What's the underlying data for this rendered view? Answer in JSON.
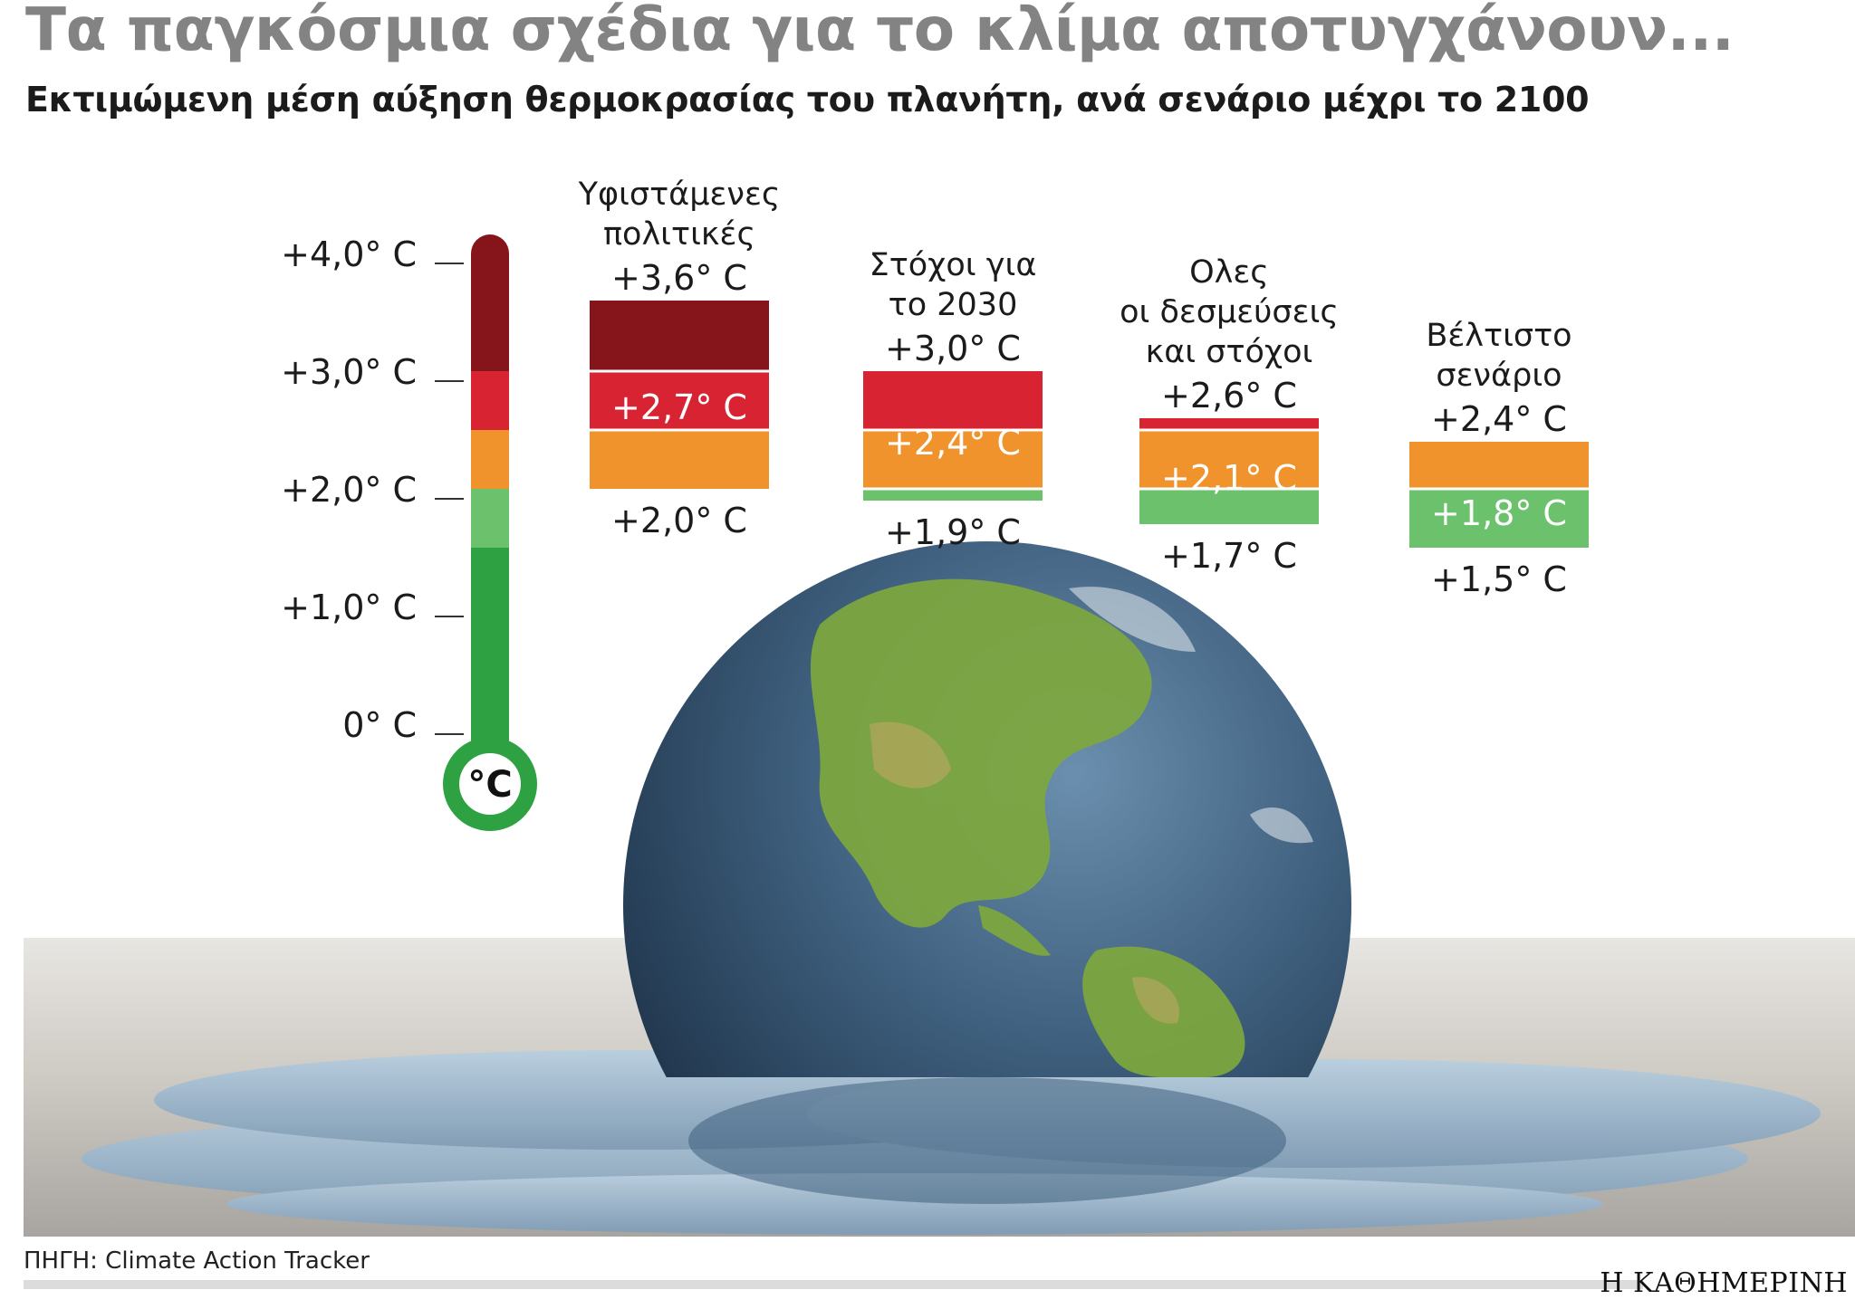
{
  "header": {
    "title": "Τα παγκόσμια σχέδια για το κλίμα αποτυγχάνουν...",
    "subtitle": "Εκτιμώμενη μέση αύξηση θερμοκρασίας του πλανήτη, ανά σενάριο μέχρι το 2100"
  },
  "footer": {
    "source": "ΠΗΓΗ: Climate Action Tracker",
    "brand": "Η ΚΑΘΗΜΕΡΙΝΗ"
  },
  "colors": {
    "dark_red": "#85141b",
    "red": "#d72332",
    "orange": "#f0932d",
    "light_green": "#6cc26c",
    "green": "#2ea142"
  },
  "chart_data": {
    "type": "bar",
    "unit": "° C",
    "thermometer": {
      "ticks": [
        "+4,0° C",
        "+3,0° C",
        "+2,0° C",
        "+1,0° C",
        "0° C"
      ],
      "tick_values": [
        4.0,
        3.0,
        2.0,
        1.0,
        0
      ],
      "bulb_label": "°C",
      "bands": [
        {
          "from": 0,
          "to": 1.5,
          "color": "green"
        },
        {
          "from": 1.5,
          "to": 2.0,
          "color": "light_green"
        },
        {
          "from": 2.0,
          "to": 2.5,
          "color": "orange"
        },
        {
          "from": 2.5,
          "to": 3.0,
          "color": "red"
        },
        {
          "from": 3.0,
          "to": 4.0,
          "color": "dark_red"
        }
      ]
    },
    "scenarios": [
      {
        "name": "Υφιστάμενες πολιτικές",
        "name_lines": [
          "Υφιστάμενες",
          "πολιτικές"
        ],
        "high": 3.6,
        "mid": 2.7,
        "low": 2.0,
        "high_label": "+3,6° C",
        "mid_label": "+2,7° C",
        "low_label": "+2,0° C"
      },
      {
        "name": "Στόχοι για το 2030",
        "name_lines": [
          "Στόχοι για",
          "το 2030"
        ],
        "high": 3.0,
        "mid": 2.4,
        "low": 1.9,
        "high_label": "+3,0° C",
        "mid_label": "+2,4° C",
        "low_label": "+1,9° C"
      },
      {
        "name": "Ολες οι δεσμεύσεις και στόχοι",
        "name_lines": [
          "Ολες",
          "οι δεσμεύσεις",
          "και στόχοι"
        ],
        "high": 2.6,
        "mid": 2.1,
        "low": 1.7,
        "high_label": "+2,6° C",
        "mid_label": "+2,1° C",
        "low_label": "+1,7° C"
      },
      {
        "name": "Βέλτιστο σενάριο",
        "name_lines": [
          "Βέλτιστο",
          "σενάριο"
        ],
        "high": 2.4,
        "mid": 1.8,
        "low": 1.5,
        "high_label": "+2,4° C",
        "mid_label": "+1,8° C",
        "low_label": "+1,5° C"
      }
    ]
  }
}
